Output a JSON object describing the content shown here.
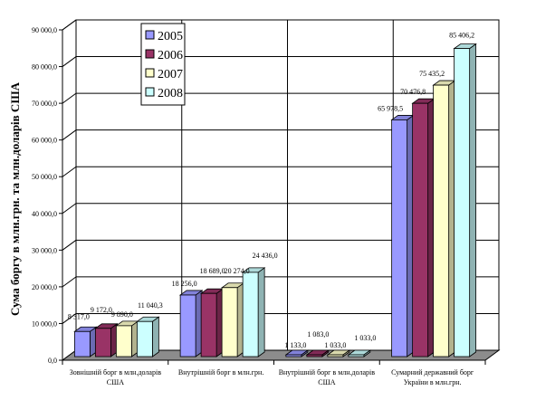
{
  "chart_data": {
    "type": "bar",
    "title": "",
    "xlabel": "",
    "ylabel": "Сума боргу в млн.грн. та млн.доларів США",
    "ylim": [
      0,
      90000
    ],
    "yticks": [
      "0,0",
      "10 000,0",
      "20 000,0",
      "30 000,0",
      "40 000,0",
      "50 000,0",
      "60 000,0",
      "70 000,0",
      "80 000,0",
      "90 000,0"
    ],
    "grid": true,
    "legend_position": "top-left",
    "categories": [
      [
        "Зовнішній борг в млн.доларів",
        "США"
      ],
      [
        "Внутрішній борг в млн.грн."
      ],
      [
        "Внутрішній борг в млн.доларів",
        "США"
      ],
      [
        "Сумарний державний борг",
        "України в млн.грн."
      ]
    ],
    "series": [
      {
        "name": "2005",
        "color": "#9999ff",
        "values": [
          8317,
          18256,
          1133,
          65978.5
        ],
        "labels": [
          "8 317,0",
          "18 256,0",
          "1 133,0",
          "65 978,5"
        ]
      },
      {
        "name": "2006",
        "color": "#993366",
        "values": [
          9172,
          18689,
          1083,
          70476.8
        ],
        "labels": [
          "9 172,0",
          "18 689,0",
          "1 083,0",
          "70 476,8"
        ]
      },
      {
        "name": "2007",
        "color": "#ffffcc",
        "values": [
          9890,
          20274,
          1033,
          75435.2
        ],
        "labels": [
          "9 890,0",
          "20 274,0",
          "1 033,0",
          "75 435,2"
        ]
      },
      {
        "name": "2008",
        "color": "#ccffff",
        "values": [
          11040.3,
          24436,
          1033,
          85406.2
        ],
        "labels": [
          "11 040,3",
          "24 436,0",
          "1 033,0",
          "85 406,2"
        ]
      }
    ]
  }
}
